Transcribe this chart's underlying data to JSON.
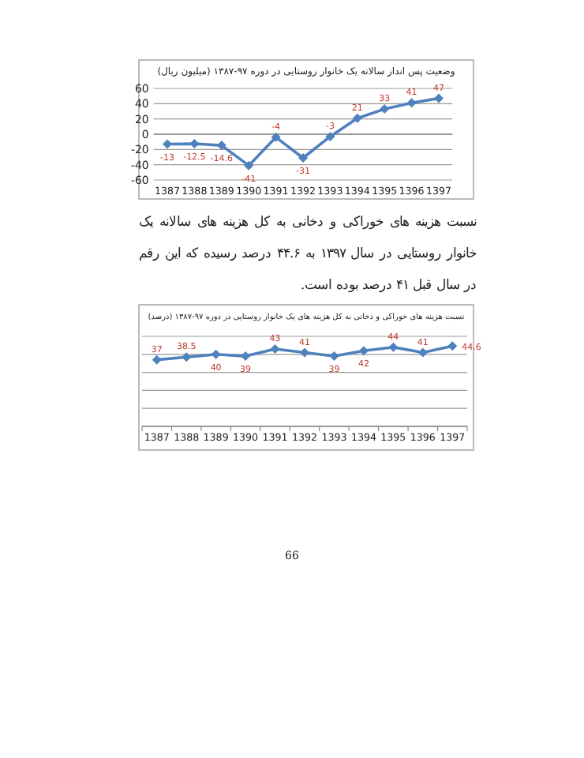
{
  "chart_data": [
    {
      "type": "line",
      "title": "وضعیت پس انداز سالانه یک خانوار روستایی در دوره ۹۷-۱۳۸۷ (میلیون ریال)",
      "categories": [
        "1387",
        "1388",
        "1389",
        "1390",
        "1391",
        "1392",
        "1393",
        "1394",
        "1395",
        "1396",
        "1397"
      ],
      "series": [
        {
          "color": "#4f81bd",
          "values": [
            -13,
            -12.5,
            -14.6,
            -41,
            -4,
            -31,
            -3,
            21,
            33,
            41,
            47
          ]
        }
      ],
      "ylim": [
        -60,
        60
      ],
      "yticks": [
        -60,
        -40,
        -20,
        0,
        20,
        40,
        60
      ],
      "grid": "y",
      "marker": "diamond",
      "data_labels": true,
      "annotations": [
        "نسبت هزینه های خوراکی و دخانی به کل هزینه های سالانه یک خانوار روستایی در سال ۱۳۹۷ به ۴۴.۶ درصد رسیده که این رقم در سال قبل ۴۱ درصد بوده است."
      ]
    },
    {
      "type": "line",
      "title": "نسبت هزینه های خوراکی و دخانی به کل هزینه های یک خانوار روستایی در دوره ۹۷-۱۳۸۷ (درصد)",
      "categories": [
        "1387",
        "1388",
        "1389",
        "1390",
        "1391",
        "1392",
        "1393",
        "1394",
        "1395",
        "1396",
        "1397"
      ],
      "series": [
        {
          "color": "#4f81bd",
          "values": [
            37,
            38.5,
            40,
            39,
            43,
            41,
            39,
            42,
            44,
            41,
            44.6
          ]
        }
      ],
      "ylim": [
        0,
        50
      ],
      "yticks": [
        {
          "value": 0,
          "label": null
        },
        {
          "value": 10,
          "label": null
        },
        {
          "value": 20,
          "label": null
        },
        {
          "value": 30,
          "label": null
        },
        {
          "value": 40,
          "label": null
        },
        {
          "value": 50,
          "label": null
        }
      ],
      "tick_labels": "x",
      "grid": "y",
      "marker": "diamond",
      "data_labels": true,
      "annotations": [
        "66"
      ]
    }
  ]
}
